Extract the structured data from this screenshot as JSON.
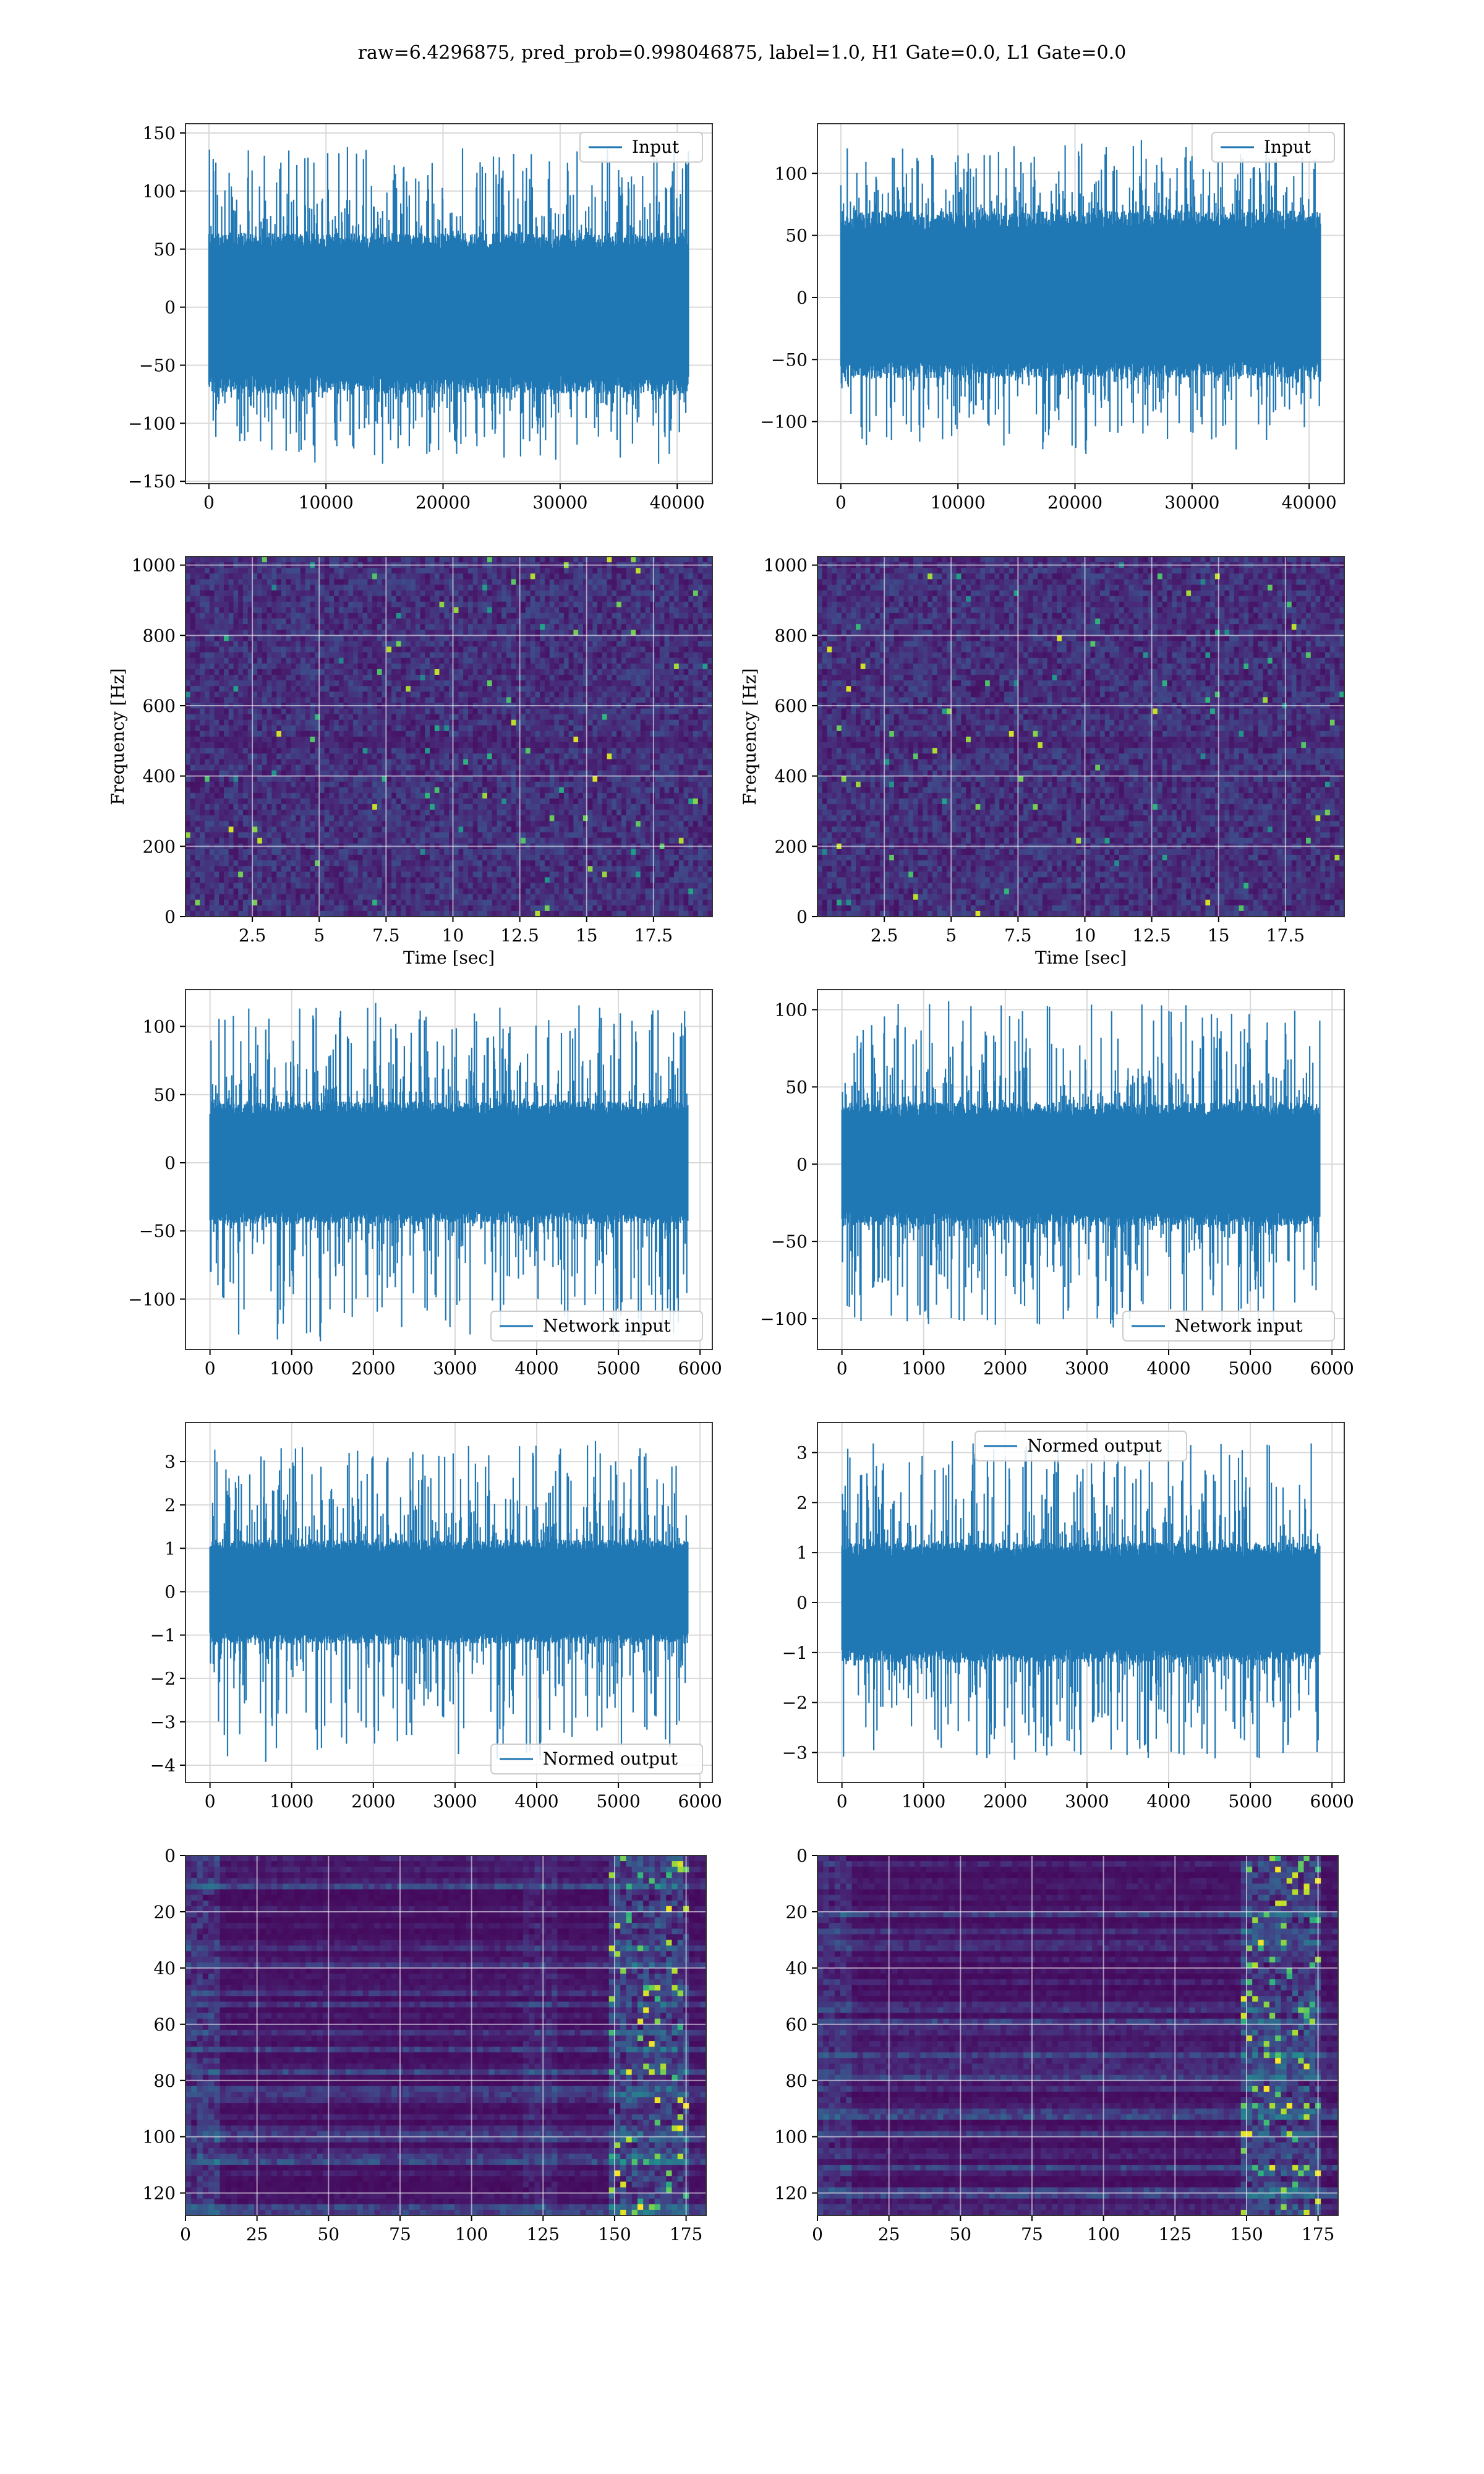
{
  "suptitle": "raw=6.4296875, pred_prob=0.998046875, label=1.0, H1 Gate=0.0, L1 Gate=0.0",
  "colors": {
    "series": "#1f77b4",
    "grid": "#d9d9d9",
    "axes": "#333333",
    "viridis_low": "#440154",
    "viridis_high": "#fde725"
  },
  "chart_data": [
    {
      "id": "r1-left",
      "type": "line",
      "legend": [
        "Input"
      ],
      "legend_loc": "upper right",
      "xlim": [
        -2000,
        43000
      ],
      "ylim": [
        -152,
        158
      ],
      "xticks": [
        0,
        10000,
        20000,
        30000,
        40000
      ],
      "yticks": [
        -150,
        -100,
        -50,
        0,
        50,
        100,
        150
      ],
      "x_range": [
        0,
        40960
      ],
      "envelope": {
        "upper": 64,
        "lower": -75,
        "max": 145,
        "min": -137
      },
      "grid": true,
      "xlabel": "",
      "ylabel": ""
    },
    {
      "id": "r1-right",
      "type": "line",
      "legend": [
        "Input"
      ],
      "legend_loc": "upper right",
      "xlim": [
        -2000,
        43000
      ],
      "ylim": [
        -150,
        140
      ],
      "xticks": [
        0,
        10000,
        20000,
        30000,
        40000
      ],
      "yticks": [
        -100,
        -50,
        0,
        50,
        100
      ],
      "x_range": [
        0,
        40960
      ],
      "envelope": {
        "upper": 70,
        "lower": -65,
        "max": 128,
        "min": -130
      },
      "grid": true,
      "xlabel": "",
      "ylabel": ""
    },
    {
      "id": "r2-left",
      "type": "heatmap",
      "xlim": [
        0,
        19.7
      ],
      "ylim": [
        0,
        1024
      ],
      "xticks": [
        2.5,
        5.0,
        7.5,
        10.0,
        12.5,
        15.0,
        17.5
      ],
      "yticks": [
        0,
        200,
        400,
        600,
        800,
        1000
      ],
      "xlabel": "Time [sec]",
      "ylabel": "Frequency [Hz]",
      "colormap": "viridis",
      "grid": true
    },
    {
      "id": "r2-right",
      "type": "heatmap",
      "xlim": [
        0,
        19.7
      ],
      "ylim": [
        0,
        1024
      ],
      "xticks": [
        2.5,
        5.0,
        7.5,
        10.0,
        12.5,
        15.0,
        17.5
      ],
      "yticks": [
        0,
        200,
        400,
        600,
        800,
        1000
      ],
      "xlabel": "Time [sec]",
      "ylabel": "Frequency [Hz]",
      "colormap": "viridis",
      "grid": true
    },
    {
      "id": "r3-left",
      "type": "line",
      "legend": [
        "Network input"
      ],
      "legend_loc": "lower right",
      "xlim": [
        -300,
        6150
      ],
      "ylim": [
        -137,
        127
      ],
      "xticks": [
        0,
        1000,
        2000,
        3000,
        4000,
        5000,
        6000
      ],
      "yticks": [
        -100,
        -50,
        0,
        50,
        100
      ],
      "x_range": [
        0,
        5850
      ],
      "envelope": {
        "upper": 45,
        "lower": -45,
        "max": 118,
        "min": -135
      },
      "grid": true,
      "xlabel": "",
      "ylabel": ""
    },
    {
      "id": "r3-right",
      "type": "line",
      "legend": [
        "Network input"
      ],
      "legend_loc": "lower right",
      "xlim": [
        -300,
        6150
      ],
      "ylim": [
        -120,
        113
      ],
      "xticks": [
        0,
        1000,
        2000,
        3000,
        4000,
        5000,
        6000
      ],
      "yticks": [
        -100,
        -50,
        0,
        50,
        100
      ],
      "x_range": [
        0,
        5850
      ],
      "envelope": {
        "upper": 40,
        "lower": -40,
        "max": 107,
        "min": -110
      },
      "grid": true,
      "xlabel": "",
      "ylabel": ""
    },
    {
      "id": "r4-left",
      "type": "line",
      "legend": [
        "Normed output"
      ],
      "legend_loc": "lower right",
      "xlim": [
        -300,
        6150
      ],
      "ylim": [
        -4.4,
        3.9
      ],
      "xticks": [
        0,
        1000,
        2000,
        3000,
        4000,
        5000,
        6000
      ],
      "yticks": [
        -4,
        -3,
        -2,
        -1,
        0,
        1,
        2,
        3
      ],
      "x_range": [
        0,
        5850
      ],
      "envelope": {
        "upper": 1.2,
        "lower": -1.2,
        "max": 3.5,
        "min": -4.0
      },
      "grid": true,
      "xlabel": "",
      "ylabel": ""
    },
    {
      "id": "r4-right",
      "type": "line",
      "legend": [
        "Normed output"
      ],
      "legend_loc": "upper center",
      "xlim": [
        -300,
        6150
      ],
      "ylim": [
        -3.6,
        3.6
      ],
      "xticks": [
        0,
        1000,
        2000,
        3000,
        4000,
        5000,
        6000
      ],
      "yticks": [
        -3,
        -2,
        -1,
        0,
        1,
        2,
        3
      ],
      "x_range": [
        0,
        5850
      ],
      "envelope": {
        "upper": 1.2,
        "lower": -1.2,
        "max": 3.3,
        "min": -3.3
      },
      "grid": true,
      "xlabel": "",
      "ylabel": ""
    },
    {
      "id": "r5-left",
      "type": "heatmap",
      "xlim": [
        0,
        182
      ],
      "ylim": [
        128,
        0
      ],
      "xticks": [
        0,
        25,
        50,
        75,
        100,
        125,
        150,
        175
      ],
      "yticks": [
        0,
        20,
        40,
        60,
        80,
        100,
        120
      ],
      "colormap": "viridis",
      "grid": true,
      "xlabel": "",
      "ylabel": ""
    },
    {
      "id": "r5-right",
      "type": "heatmap",
      "xlim": [
        0,
        182
      ],
      "ylim": [
        128,
        0
      ],
      "xticks": [
        0,
        25,
        50,
        75,
        100,
        125,
        150,
        175
      ],
      "yticks": [
        0,
        20,
        40,
        60,
        80,
        100,
        120
      ],
      "colormap": "viridis",
      "grid": true,
      "xlabel": "",
      "ylabel": ""
    }
  ]
}
